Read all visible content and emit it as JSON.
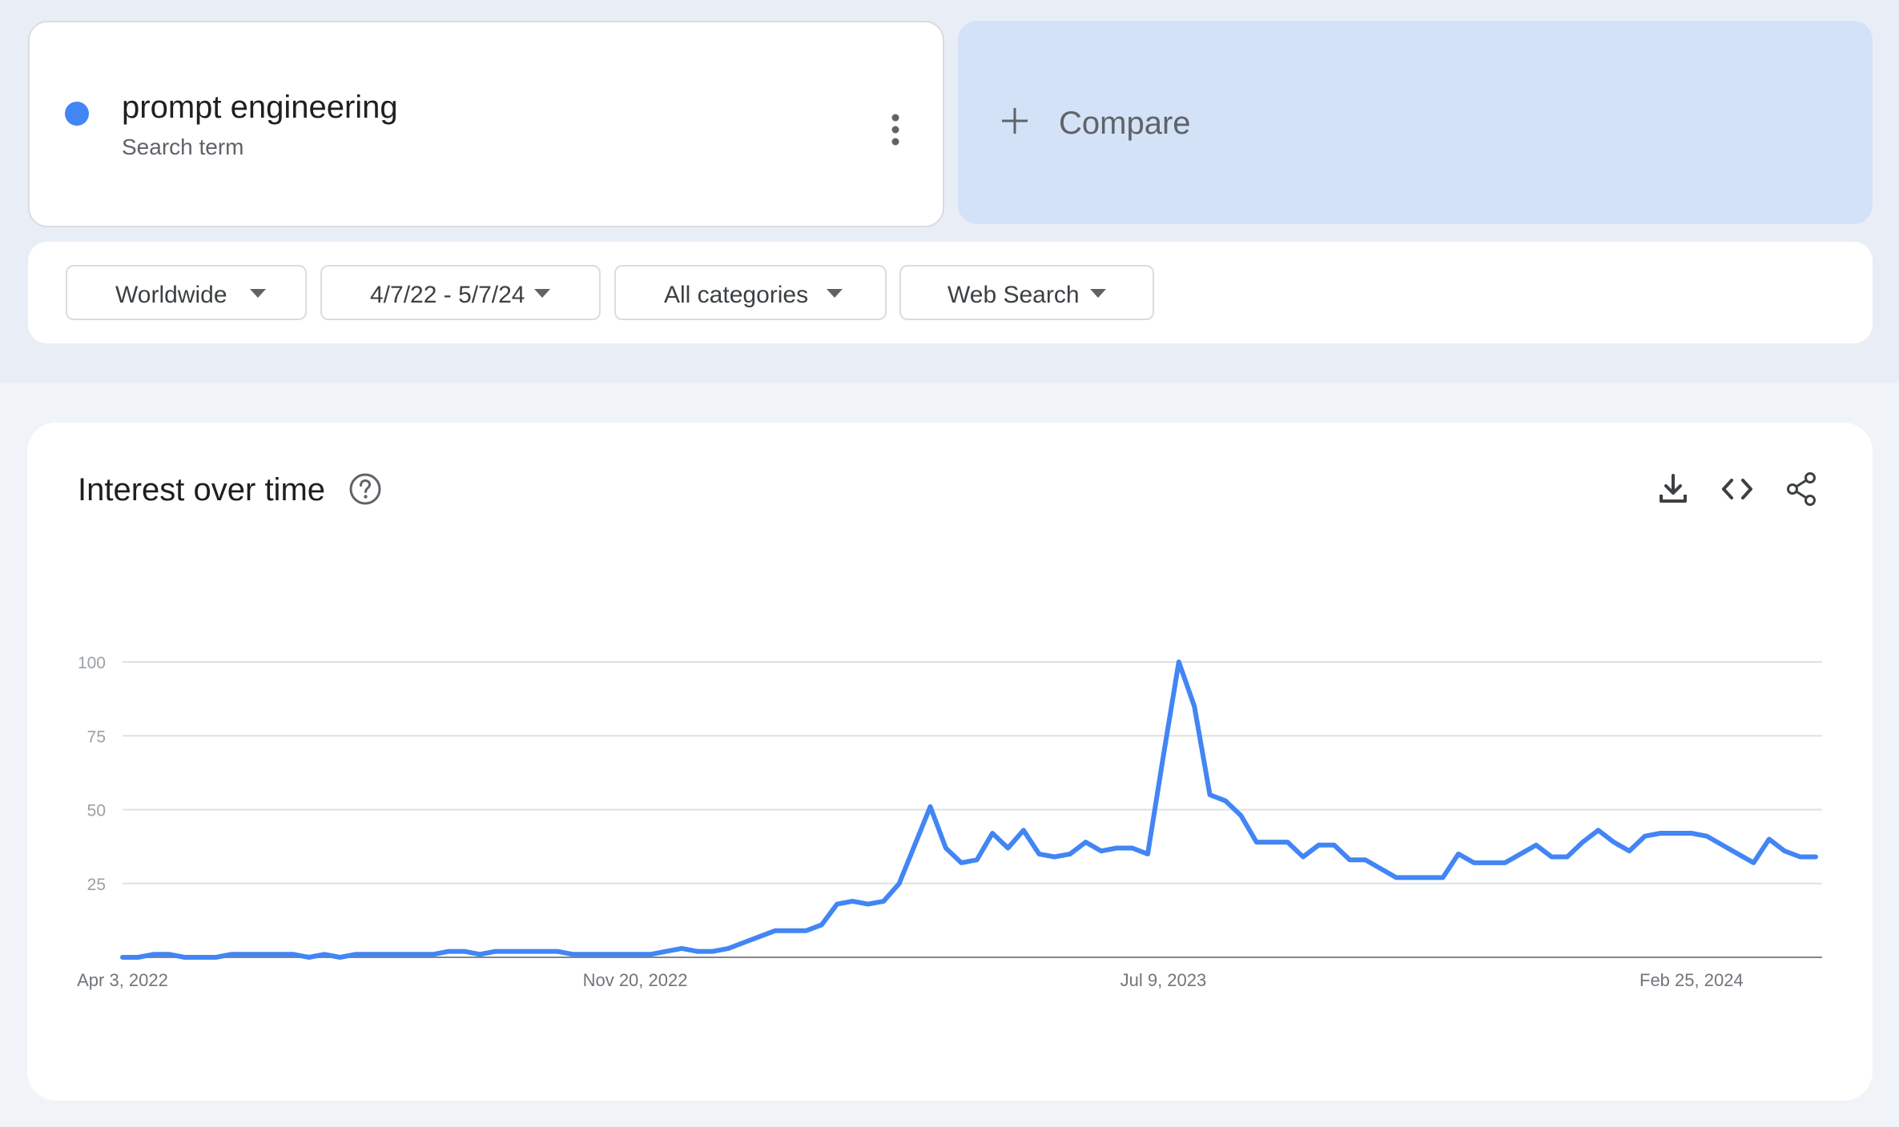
{
  "search_term": {
    "name": "prompt engineering",
    "type_label": "Search term",
    "color": "#4285f4",
    "menu_icon": "more-vert-icon"
  },
  "compare": {
    "label": "Compare",
    "icon": "plus-icon"
  },
  "filters": {
    "region": "Worldwide",
    "date_range": "4/7/22 - 5/7/24",
    "category": "All categories",
    "search_type": "Web Search",
    "dropdown_icon": "arrow-drop-down-icon"
  },
  "interest_panel": {
    "title": "Interest over time",
    "help_icon": "help-circle-icon",
    "tools": [
      "download-icon",
      "code-embed-icon",
      "share-icon"
    ]
  },
  "chart_data": {
    "type": "line",
    "title": "",
    "xlabel": "",
    "ylabel": "",
    "ylim": [
      0,
      100
    ],
    "y_ticks": [
      "100",
      "75",
      "50",
      "25"
    ],
    "x_tick_labels": [
      "Apr 3, 2022",
      "Nov 20, 2022",
      "Jul 9, 2023",
      "Feb 25, 2024"
    ],
    "x_tick_indices": [
      0,
      33,
      67,
      101
    ],
    "grid": true,
    "legend": "none",
    "series": [
      {
        "color": "#4285f4",
        "values": [
          0,
          0,
          1,
          1,
          0,
          0,
          0,
          1,
          1,
          1,
          1,
          1,
          0,
          1,
          0,
          1,
          1,
          1,
          1,
          1,
          1,
          2,
          2,
          1,
          2,
          2,
          2,
          2,
          2,
          1,
          1,
          1,
          1,
          1,
          1,
          2,
          3,
          2,
          2,
          3,
          5,
          7,
          9,
          9,
          9,
          11,
          18,
          19,
          18,
          19,
          25,
          38,
          51,
          37,
          32,
          33,
          42,
          37,
          43,
          35,
          34,
          35,
          39,
          36,
          37,
          37,
          35,
          68,
          100,
          85,
          55,
          53,
          48,
          39,
          39,
          39,
          34,
          38,
          38,
          33,
          33,
          30,
          27,
          27,
          27,
          27,
          35,
          32,
          32,
          32,
          35,
          38,
          34,
          34,
          39,
          43,
          39,
          36,
          41,
          42,
          42,
          42,
          41,
          38,
          35,
          32,
          40,
          36,
          34,
          34
        ]
      }
    ]
  }
}
